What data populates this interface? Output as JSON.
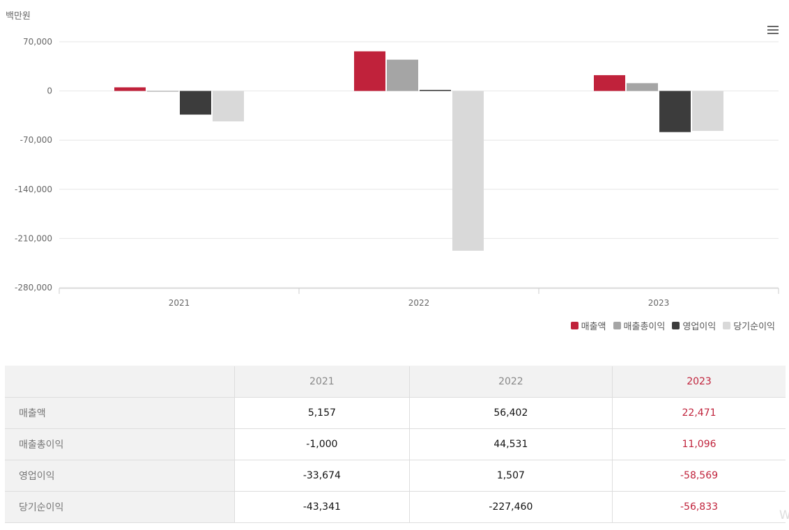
{
  "chart": {
    "unit": "백만원"
  },
  "chart_data": {
    "type": "bar",
    "categories": [
      "2021",
      "2022",
      "2023"
    ],
    "series": [
      {
        "name": "매출액",
        "color": "#c0223b",
        "values": [
          5157,
          56402,
          22471
        ]
      },
      {
        "name": "매출총이익",
        "color": "#a5a5a5",
        "values": [
          -1000,
          44531,
          11096
        ]
      },
      {
        "name": "영업이익",
        "color": "#3c3c3c",
        "values": [
          -33674,
          1507,
          -58569
        ]
      },
      {
        "name": "당기순이익",
        "color": "#d9d9d9",
        "values": [
          -43341,
          -227460,
          -56833
        ]
      }
    ],
    "yticks": [
      "70,000",
      "0",
      "-70,000",
      "-140,000",
      "-210,000",
      "-280,000"
    ],
    "ylim": [
      -280000,
      70000
    ],
    "grid": true,
    "legend_position": "bottom-right",
    "ylabel": "백만원"
  },
  "table": {
    "header": [
      "",
      "2021",
      "2022",
      "2023"
    ],
    "rows": [
      {
        "label": "매출액",
        "values": [
          "5,157",
          "56,402",
          "22,471"
        ]
      },
      {
        "label": "매출총이익",
        "values": [
          "-1,000",
          "44,531",
          "11,096"
        ]
      },
      {
        "label": "영업이익",
        "values": [
          "-33,674",
          "1,507",
          "-58,569"
        ]
      },
      {
        "label": "당기순이익",
        "values": [
          "-43,341",
          "-227,460",
          "-56,833"
        ]
      }
    ],
    "highlight_color": "#c0223b"
  },
  "watermark": "W"
}
